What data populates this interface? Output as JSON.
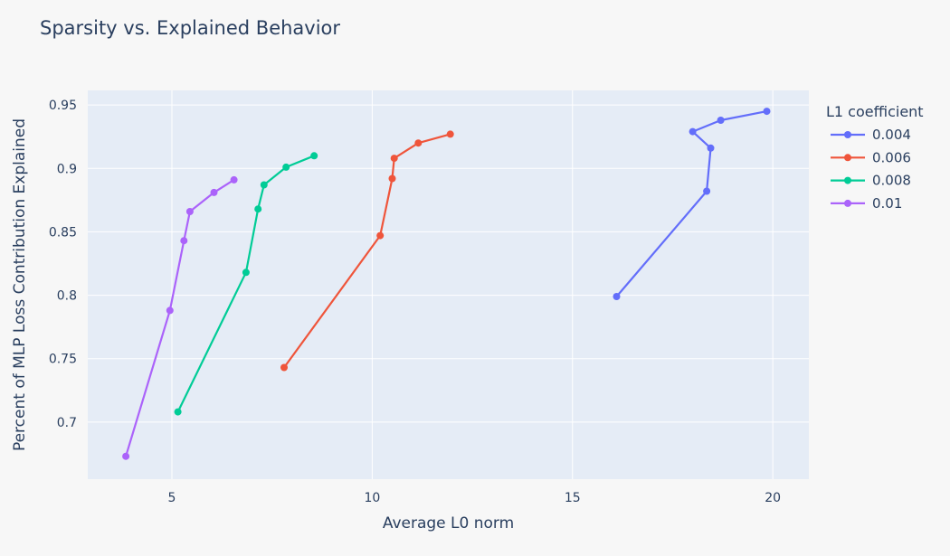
{
  "chart_data": {
    "type": "line",
    "title": "Sparsity vs. Explained Behavior",
    "xlabel": "Average L0 norm",
    "ylabel": "Percent of MLP Loss Contribution Explained",
    "xlim": [
      2.9,
      20.9
    ],
    "ylim": [
      0.655,
      0.9615
    ],
    "xticks": [
      5,
      10,
      15,
      20
    ],
    "xtick_labels": [
      "5",
      "10",
      "15",
      "20"
    ],
    "yticks": [
      0.7,
      0.75,
      0.8,
      0.85,
      0.9,
      0.95
    ],
    "ytick_labels": [
      "0.7",
      "0.75",
      "0.8",
      "0.85",
      "0.9",
      "0.95"
    ],
    "grid": true,
    "legend": {
      "title": "L1 coefficient",
      "placement": "right"
    },
    "series": [
      {
        "name": "0.004",
        "color": "#636efa",
        "x": [
          16.1,
          18.35,
          18.45,
          18.0,
          18.7,
          19.85
        ],
        "y": [
          0.799,
          0.882,
          0.916,
          0.929,
          0.938,
          0.945
        ]
      },
      {
        "name": "0.006",
        "color": "#ef553b",
        "x": [
          7.8,
          10.2,
          10.5,
          10.55,
          11.15,
          11.95
        ],
        "y": [
          0.743,
          0.847,
          0.892,
          0.908,
          0.92,
          0.927
        ]
      },
      {
        "name": "0.008",
        "color": "#00cc96",
        "x": [
          5.15,
          6.85,
          7.15,
          7.3,
          7.85,
          8.55
        ],
        "y": [
          0.708,
          0.818,
          0.868,
          0.887,
          0.901,
          0.91
        ]
      },
      {
        "name": "0.01",
        "color": "#ab63fa",
        "x": [
          3.85,
          4.95,
          5.3,
          5.45,
          6.05,
          6.55
        ],
        "y": [
          0.673,
          0.788,
          0.843,
          0.866,
          0.881,
          0.891
        ]
      }
    ]
  },
  "colors": {
    "page_background": "#f7f7f7",
    "plot_background": "#e5ecf6",
    "grid": "#ffffff",
    "text": "#2a3f5f"
  }
}
